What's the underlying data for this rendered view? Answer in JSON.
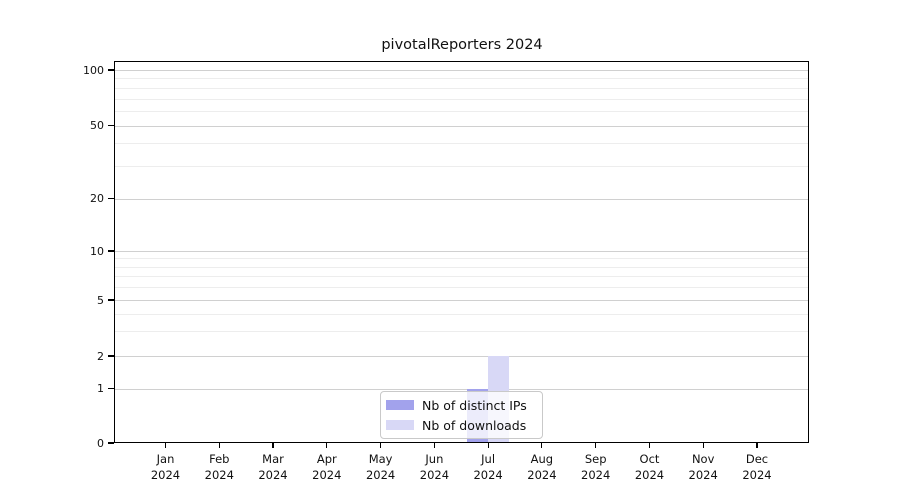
{
  "title": "pivotalReporters 2024",
  "chart_data": {
    "type": "bar",
    "title": "pivotalReporters 2024",
    "categories": [
      "Jan",
      "Feb",
      "Mar",
      "Apr",
      "May",
      "Jun",
      "Jul",
      "Aug",
      "Sep",
      "Oct",
      "Nov",
      "Dec"
    ],
    "year_label": "2024",
    "series": [
      {
        "name": "Nb of distinct IPs",
        "color": "#a2a2ec",
        "values": [
          0,
          0,
          0,
          0,
          0,
          0,
          1,
          0,
          0,
          0,
          0,
          0
        ]
      },
      {
        "name": "Nb of downloads",
        "color": "#d8d8f6",
        "values": [
          0,
          0,
          0,
          0,
          0,
          0,
          2,
          0,
          0,
          0,
          0,
          0
        ]
      }
    ],
    "y_axis": {
      "scale": "symlog",
      "ticks": [
        0,
        1,
        2,
        5,
        10,
        20,
        50,
        100
      ],
      "minor_ticks": [
        3,
        4,
        6,
        7,
        8,
        9,
        30,
        40,
        60,
        70,
        80,
        90
      ],
      "ylim": [
        0,
        100
      ]
    },
    "x_axis": {
      "tick_labels_line2": "2024"
    },
    "legend": {
      "position": "bottom-center",
      "entries": [
        "Nb of distinct IPs",
        "Nb of downloads"
      ]
    },
    "grid": "horizontal-only"
  },
  "colors": {
    "background": "#ffffff",
    "frame": "#000000",
    "grid_major": "#d0d0d0",
    "grid_minor": "#ededed",
    "bar_distinct_ips": "#a2a2ec",
    "bar_downloads": "#d8d8f6",
    "legend_border": "#c9c9c9"
  }
}
